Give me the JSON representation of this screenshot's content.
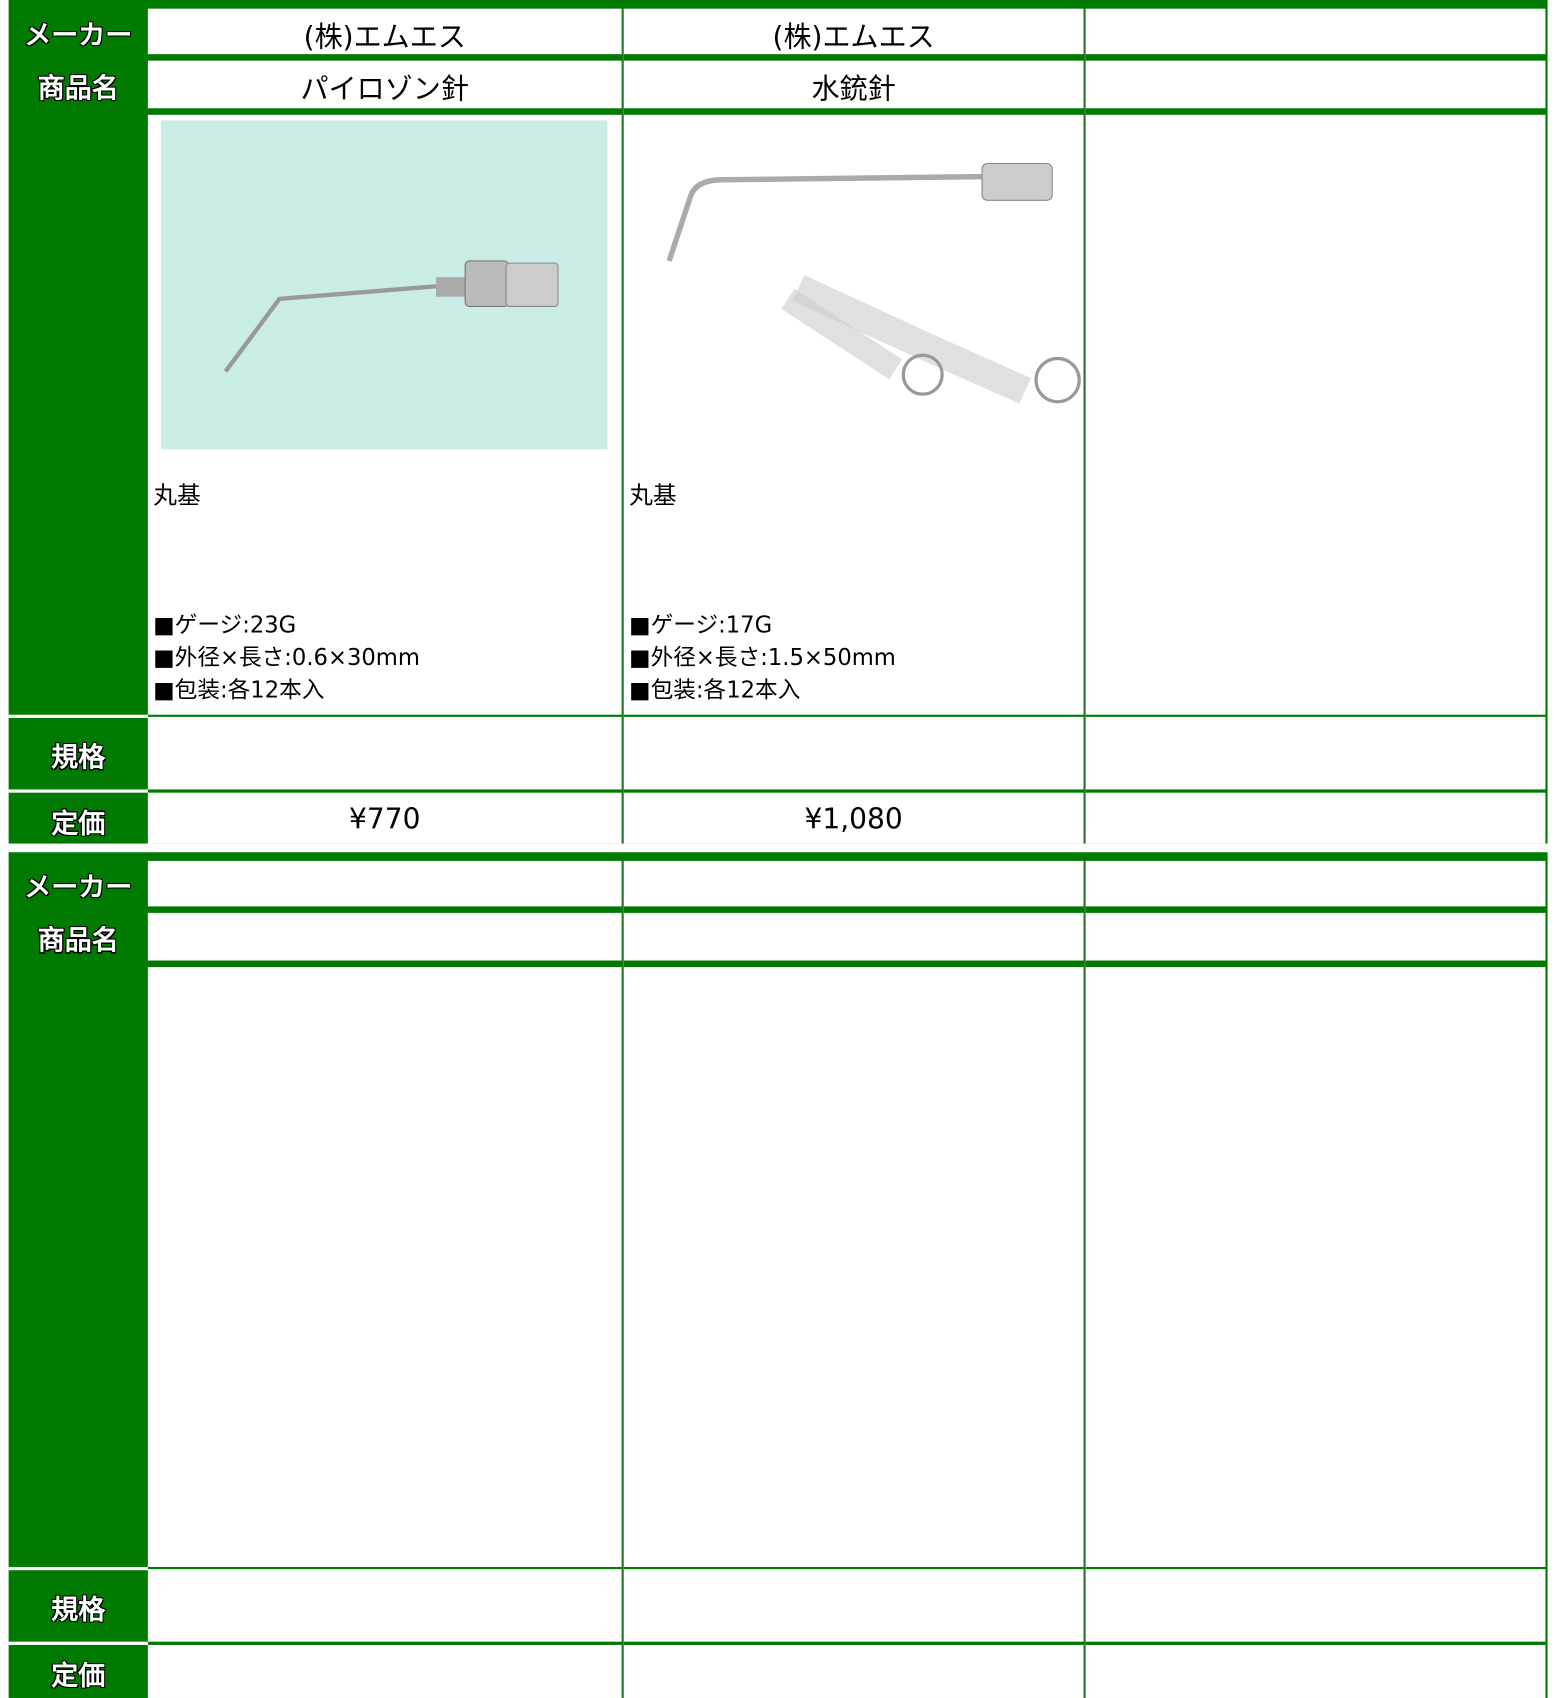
{
  "labels": {
    "maker": "メーカー",
    "name": "商品名",
    "spec": "規格",
    "price": "定価"
  },
  "blocks": [
    {
      "products": [
        {
          "maker": "(株)エムエス",
          "name": "パイロゾン針",
          "note": "丸基",
          "specs": [
            "■ゲージ:23G",
            "■外径×長さ:0.6×30mm",
            "■包装:各12本入"
          ],
          "price": "¥770"
        },
        {
          "maker": "(株)エムエス",
          "name": "水銃針",
          "note": "丸基",
          "specs": [
            "■ゲージ:17G",
            "■外径×長さ:1.5×50mm",
            "■包装:各12本入"
          ],
          "price": "¥1,080"
        }
      ]
    },
    {
      "products": []
    }
  ]
}
